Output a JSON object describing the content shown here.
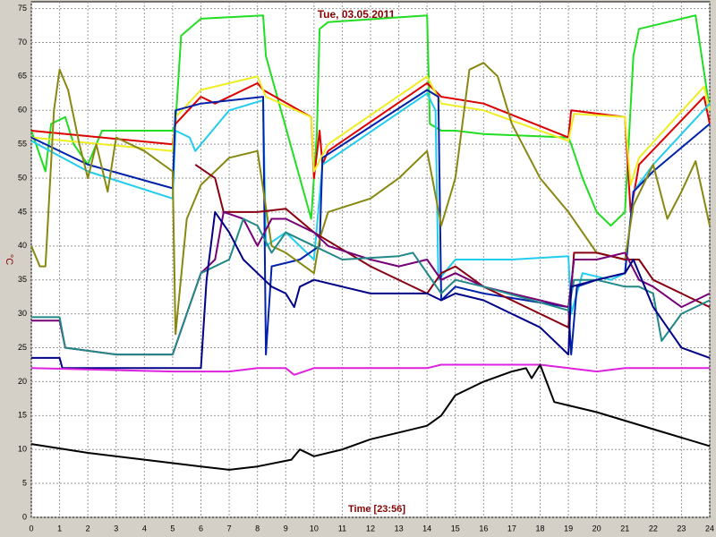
{
  "chart_data": {
    "type": "line",
    "title": "Tue, 03.05.2011",
    "x_label": "Time [23:56]",
    "y_label": "°C",
    "xlim": [
      0,
      24
    ],
    "ylim": [
      0,
      76
    ],
    "xticks": [
      0,
      1,
      2,
      3,
      4,
      5,
      6,
      7,
      8,
      9,
      10,
      11,
      12,
      13,
      14,
      15,
      16,
      17,
      18,
      19,
      20,
      21,
      22,
      23,
      24
    ],
    "yticks": [
      0,
      5,
      10,
      15,
      20,
      25,
      30,
      35,
      40,
      45,
      50,
      55,
      60,
      65,
      70,
      75
    ],
    "grid": true,
    "series": [
      {
        "color": "#22dd22",
        "x": [
          0,
          0.5,
          0.7,
          1.2,
          1.5,
          2,
          2.5,
          3,
          5,
          5.1,
          5.3,
          6,
          8.2,
          8.3,
          9.9,
          10.1,
          10.2,
          10.5,
          14,
          14.1,
          14.5,
          15,
          16,
          19,
          19.1,
          19.5,
          20,
          20.5,
          21,
          21.3,
          21.5,
          23.5,
          24
        ],
        "values": [
          57,
          51,
          58,
          59,
          55,
          52,
          57,
          57,
          57,
          58,
          71,
          73.5,
          74,
          68,
          44,
          56.5,
          72,
          73,
          74,
          58,
          57,
          57,
          56.5,
          56,
          55,
          50,
          45,
          43,
          45,
          68,
          72,
          74,
          60
        ]
      },
      {
        "color": "#dd0000",
        "x": [
          0,
          5,
          5.1,
          6,
          6.5,
          8,
          8.2,
          9.9,
          10,
          10.2,
          10.3,
          10.5,
          14,
          14.5,
          16,
          19,
          19.1,
          21,
          21.2,
          21.5,
          23.8,
          24
        ],
        "values": [
          57,
          55,
          58,
          62,
          61,
          64,
          63,
          59,
          50,
          57,
          52,
          54,
          64,
          62,
          61,
          56,
          60,
          59,
          45,
          52,
          62,
          58
        ]
      },
      {
        "color": "#eeee22",
        "x": [
          0,
          5,
          5.1,
          6,
          8,
          8.3,
          9.9,
          10,
          10.5,
          14,
          14.5,
          16,
          19,
          19.2,
          21,
          21.2,
          21.5,
          23.8,
          24
        ],
        "values": [
          56,
          54,
          59,
          63,
          65,
          62,
          59,
          51,
          55,
          65,
          61,
          60,
          55.5,
          59.5,
          59,
          49,
          53,
          63.5,
          60
        ]
      },
      {
        "color": "#22ccee",
        "x": [
          0,
          2,
          5,
          5.1,
          5.6,
          5.8,
          6.2,
          7,
          8.2,
          8.3,
          9,
          10,
          10.3,
          14,
          14.3,
          14.4,
          15,
          17,
          19,
          19.1,
          19.5,
          20.5,
          21,
          21.3,
          22,
          24
        ],
        "values": [
          55.5,
          51,
          47,
          57,
          56,
          54,
          56,
          60,
          61.5,
          40,
          42,
          38,
          52,
          62.5,
          60,
          35,
          38,
          38,
          38.5,
          30,
          36,
          35,
          36,
          48,
          52,
          61
        ]
      },
      {
        "color": "#0022aa",
        "x": [
          0,
          2,
          5,
          5.1,
          6,
          8.2,
          8.3,
          8.5,
          9.5,
          10.2,
          10.3,
          14,
          14.4,
          14.5,
          15,
          16,
          19,
          19.1,
          19.3,
          20,
          21,
          21.3,
          22,
          24
        ],
        "values": [
          56,
          52,
          48.5,
          60,
          61,
          62,
          24,
          37,
          38,
          40,
          53,
          63,
          62,
          32,
          34,
          33,
          31,
          24,
          34,
          35,
          36,
          48,
          51,
          58
        ]
      },
      {
        "color": "#888811",
        "x": [
          0,
          0.3,
          0.5,
          0.8,
          1,
          1.3,
          1.7,
          2,
          2.3,
          2.7,
          3,
          4,
          5,
          5.1,
          5.5,
          6,
          7,
          8,
          8.5,
          9,
          10,
          10.2,
          10.5,
          12,
          13,
          14,
          14.5,
          15,
          15.5,
          16,
          16.5,
          17,
          18,
          19,
          20,
          21,
          21.3,
          22,
          22.5,
          23,
          23.5,
          24
        ],
        "values": [
          40,
          37,
          37,
          60,
          66,
          63,
          55,
          50,
          55,
          48,
          56,
          54,
          51,
          27,
          44,
          49,
          53,
          54,
          40,
          39,
          36,
          41,
          45,
          47,
          50,
          54,
          43,
          50,
          66,
          67,
          65,
          58,
          50,
          45,
          39,
          38,
          46,
          52,
          44,
          48,
          52.5,
          43
        ]
      },
      {
        "color": "#880011",
        "x": [
          5.8,
          6.5,
          6.8,
          8,
          9,
          10,
          12,
          14,
          14.5,
          15,
          16,
          18,
          19,
          19.2,
          20,
          21,
          21.5,
          22,
          23,
          24
        ],
        "values": [
          52,
          50,
          45,
          45,
          45.5,
          42,
          37,
          33,
          36,
          37,
          34,
          30,
          28,
          39,
          39,
          38,
          38,
          35,
          33,
          31
        ]
      },
      {
        "color": "#770077",
        "x": [
          0,
          1,
          1.2,
          3,
          5,
          5.5,
          6,
          6.5,
          6.8,
          7.5,
          8,
          8.5,
          9,
          10,
          10.5,
          12,
          13,
          14,
          14.5,
          15,
          16,
          19,
          19.2,
          20,
          21,
          21.5,
          22,
          23,
          24
        ],
        "values": [
          29,
          29,
          25,
          24,
          24,
          30,
          36,
          38,
          45,
          44,
          40,
          44,
          44,
          42,
          40,
          38,
          37,
          38,
          35,
          36,
          34,
          31,
          38,
          38,
          39,
          35,
          34,
          31,
          33
        ]
      },
      {
        "color": "#228888",
        "x": [
          0,
          1,
          1.2,
          3,
          5,
          5.5,
          6,
          7,
          7.5,
          8,
          8.5,
          9,
          10,
          11,
          13,
          13.5,
          14,
          14.5,
          15,
          16,
          19,
          19.2,
          20,
          21,
          21.5,
          22,
          22.3,
          23,
          24
        ],
        "values": [
          29.5,
          29.5,
          25,
          24,
          24,
          30,
          36,
          38,
          44,
          43,
          39,
          42,
          40,
          38,
          38.5,
          39,
          36,
          33,
          35,
          34,
          30.5,
          35,
          35,
          34,
          34,
          33,
          26,
          30,
          32
        ]
      },
      {
        "color": "#000088",
        "x": [
          0,
          1,
          1.1,
          3,
          5,
          6,
          6.2,
          6.5,
          7,
          7.5,
          8,
          8.5,
          9,
          9.3,
          9.5,
          10,
          11,
          12,
          13,
          14,
          14.5,
          15,
          16,
          18,
          19,
          19.1,
          20,
          21,
          21.3,
          22,
          23,
          24
        ],
        "values": [
          23.5,
          23.5,
          22,
          22,
          22,
          22,
          35,
          45,
          42,
          38,
          36,
          34,
          33,
          31,
          34,
          35,
          34,
          33,
          33,
          33,
          32,
          33,
          32,
          28,
          24,
          34,
          35,
          36,
          38,
          31,
          25,
          23.5
        ]
      },
      {
        "color": "#dd22dd",
        "x": [
          0,
          5,
          7,
          8,
          9,
          9.3,
          10,
          14,
          14.5,
          18,
          19,
          20,
          21,
          24
        ],
        "values": [
          22,
          21.5,
          21.5,
          22,
          22,
          21,
          22,
          22,
          22.5,
          22.5,
          22,
          21.5,
          22,
          22
        ]
      },
      {
        "color": "#000000",
        "x": [
          0,
          2,
          4,
          6,
          7,
          8,
          9.2,
          9.5,
          10,
          11,
          12,
          13,
          14,
          14.5,
          15,
          16,
          17,
          17.5,
          17.7,
          18,
          18.5,
          20,
          22,
          24
        ],
        "values": [
          10.8,
          9.5,
          8.5,
          7.5,
          7,
          7.5,
          8.5,
          10,
          9,
          10,
          11.5,
          12.5,
          13.5,
          15,
          18,
          20,
          21.5,
          22,
          20.5,
          22.5,
          17,
          15.5,
          13,
          10.5
        ]
      }
    ]
  }
}
